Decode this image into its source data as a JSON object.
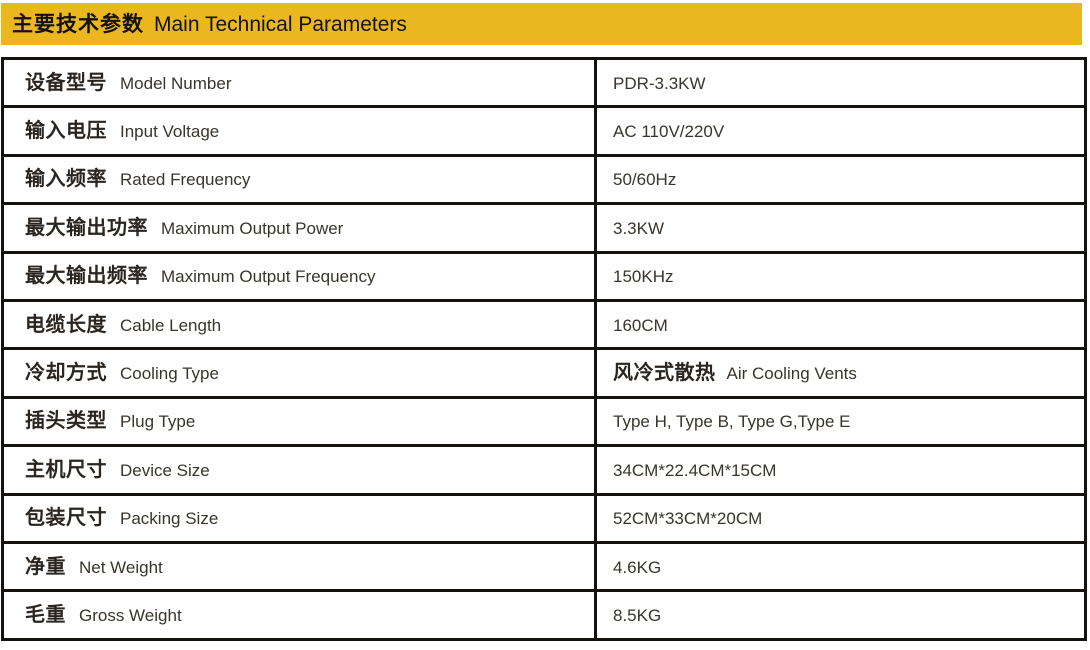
{
  "header": {
    "title_zh": "主要技术参数",
    "title_en": "Main Technical Parameters",
    "bg_color": "#EBB71E",
    "text_color": "#141210"
  },
  "table": {
    "border_color": "#15110e",
    "rows": [
      {
        "zh": "设备型号",
        "en": "Model Number",
        "value": "PDR-3.3KW"
      },
      {
        "zh": "输入电压",
        "en": "Input Voltage",
        "value": "AC 110V/220V"
      },
      {
        "zh": "输入频率",
        "en": "Rated Frequency",
        "value": "50/60Hz"
      },
      {
        "zh": "最大输出功率",
        "en": "Maximum Output Power",
        "value": "3.3KW"
      },
      {
        "zh": "最大输出频率",
        "en": "Maximum Output Frequency",
        "value": "150KHz"
      },
      {
        "zh": "电缆长度",
        "en": "Cable Length",
        "value": "160CM"
      },
      {
        "zh": "冷却方式",
        "en": "Cooling Type",
        "value_zh": "风冷式散热",
        "value": "Air Cooling Vents"
      },
      {
        "zh": "插头类型",
        "en": "Plug Type",
        "value": "Type H, Type B, Type G,Type E"
      },
      {
        "zh": "主机尺寸",
        "en": "Device Size",
        "value": "34CM*22.4CM*15CM"
      },
      {
        "zh": "包装尺寸",
        "en": "Packing Size",
        "value": "52CM*33CM*20CM"
      },
      {
        "zh": "净重",
        "en": "Net Weight",
        "value": "4.6KG"
      },
      {
        "zh": "毛重",
        "en": "Gross Weight",
        "value": "8.5KG"
      }
    ]
  }
}
